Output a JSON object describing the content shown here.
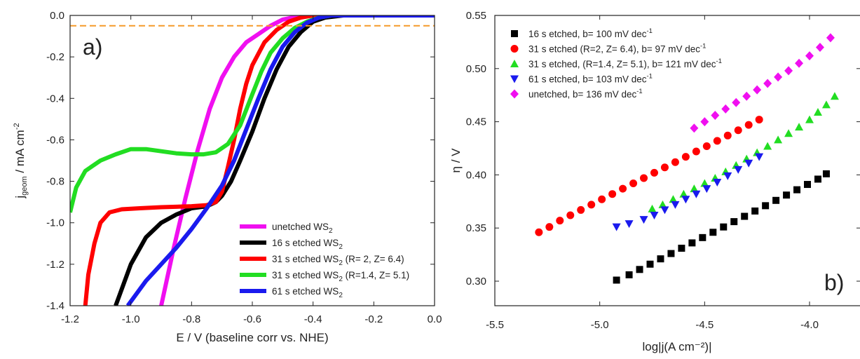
{
  "chart_data": [
    {
      "panel_label": "a)",
      "type": "line",
      "xlabel": "E / V (baseline corr vs. NHE)",
      "ylabel_main": "j",
      "ylabel_sub": "geom",
      "ylabel_rest": " / mA cm",
      "ylabel_sup": "-2",
      "xlim": [
        -1.2,
        0.0
      ],
      "ylim": [
        -1.4,
        0.0
      ],
      "x_ticks": [
        "-1.2",
        "-1.0",
        "-0.8",
        "-0.6",
        "-0.4",
        "-0.2",
        "0.0"
      ],
      "y_ticks": [
        "0.0",
        "-0.2",
        "-0.4",
        "-0.6",
        "-0.8",
        "-1.0",
        "-1.2",
        "-1.4"
      ],
      "reference_line": {
        "y": -0.05,
        "color": "#f59a2a",
        "style": "dashed"
      },
      "legend_position": "bottom-right",
      "series": [
        {
          "name": "unetched WS",
          "sub": "2",
          "extra": "",
          "color": "#f00ff0",
          "points": [
            [
              -0.9,
              -1.4
            ],
            [
              -0.86,
              -1.13
            ],
            [
              -0.82,
              -0.88
            ],
            [
              -0.78,
              -0.65
            ],
            [
              -0.74,
              -0.45
            ],
            [
              -0.7,
              -0.3
            ],
            [
              -0.66,
              -0.2
            ],
            [
              -0.62,
              -0.13
            ],
            [
              -0.58,
              -0.09
            ],
            [
              -0.54,
              -0.05
            ],
            [
              -0.5,
              -0.02
            ],
            [
              -0.45,
              -0.005
            ],
            [
              -0.4,
              0.0
            ],
            [
              0.0,
              0.0
            ]
          ]
        },
        {
          "name": "16 s etched WS",
          "sub": "2",
          "extra": "",
          "color": "#000000",
          "points": [
            [
              -1.05,
              -1.4
            ],
            [
              -1.0,
              -1.2
            ],
            [
              -0.95,
              -1.07
            ],
            [
              -0.9,
              -1.0
            ],
            [
              -0.85,
              -0.96
            ],
            [
              -0.8,
              -0.93
            ],
            [
              -0.75,
              -0.92
            ],
            [
              -0.72,
              -0.9
            ],
            [
              -0.7,
              -0.87
            ],
            [
              -0.67,
              -0.8
            ],
            [
              -0.64,
              -0.7
            ],
            [
              -0.6,
              -0.56
            ],
            [
              -0.56,
              -0.4
            ],
            [
              -0.52,
              -0.26
            ],
            [
              -0.48,
              -0.15
            ],
            [
              -0.44,
              -0.08
            ],
            [
              -0.4,
              -0.03
            ],
            [
              -0.36,
              -0.01
            ],
            [
              -0.3,
              0.0
            ],
            [
              0.0,
              0.0
            ]
          ]
        },
        {
          "name": "31 s etched WS",
          "sub": "2",
          "extra": " (R= 2, Z= 6.4)",
          "color": "#ff0000",
          "points": [
            [
              -1.15,
              -1.4
            ],
            [
              -1.14,
              -1.25
            ],
            [
              -1.12,
              -1.1
            ],
            [
              -1.1,
              -1.0
            ],
            [
              -1.07,
              -0.95
            ],
            [
              -1.03,
              -0.935
            ],
            [
              -0.97,
              -0.93
            ],
            [
              -0.9,
              -0.925
            ],
            [
              -0.8,
              -0.92
            ],
            [
              -0.75,
              -0.915
            ],
            [
              -0.72,
              -0.9
            ],
            [
              -0.7,
              -0.85
            ],
            [
              -0.68,
              -0.73
            ],
            [
              -0.66,
              -0.6
            ],
            [
              -0.64,
              -0.45
            ],
            [
              -0.62,
              -0.33
            ],
            [
              -0.6,
              -0.24
            ],
            [
              -0.56,
              -0.13
            ],
            [
              -0.52,
              -0.07
            ],
            [
              -0.48,
              -0.03
            ],
            [
              -0.44,
              -0.01
            ],
            [
              -0.4,
              0.0
            ],
            [
              0.0,
              0.0
            ]
          ]
        },
        {
          "name": "31 s etched WS",
          "sub": "2",
          "extra": " (R=1.4, Z= 5.1)",
          "color": "#22dd22",
          "points": [
            [
              -1.2,
              -0.95
            ],
            [
              -1.18,
              -0.83
            ],
            [
              -1.15,
              -0.75
            ],
            [
              -1.1,
              -0.7
            ],
            [
              -1.05,
              -0.67
            ],
            [
              -1.0,
              -0.645
            ],
            [
              -0.95,
              -0.645
            ],
            [
              -0.9,
              -0.655
            ],
            [
              -0.85,
              -0.665
            ],
            [
              -0.8,
              -0.67
            ],
            [
              -0.76,
              -0.67
            ],
            [
              -0.72,
              -0.66
            ],
            [
              -0.68,
              -0.62
            ],
            [
              -0.64,
              -0.53
            ],
            [
              -0.6,
              -0.38
            ],
            [
              -0.57,
              -0.27
            ],
            [
              -0.54,
              -0.18
            ],
            [
              -0.5,
              -0.11
            ],
            [
              -0.46,
              -0.06
            ],
            [
              -0.42,
              -0.03
            ],
            [
              -0.38,
              -0.01
            ],
            [
              -0.34,
              0.0
            ],
            [
              0.0,
              0.0
            ]
          ]
        },
        {
          "name": "61 s etched WS",
          "sub": "2",
          "extra": "",
          "color": "#1a1aee",
          "points": [
            [
              -1.01,
              -1.4
            ],
            [
              -0.95,
              -1.28
            ],
            [
              -0.9,
              -1.2
            ],
            [
              -0.85,
              -1.12
            ],
            [
              -0.8,
              -1.03
            ],
            [
              -0.75,
              -0.93
            ],
            [
              -0.7,
              -0.82
            ],
            [
              -0.66,
              -0.7
            ],
            [
              -0.62,
              -0.55
            ],
            [
              -0.58,
              -0.4
            ],
            [
              -0.54,
              -0.26
            ],
            [
              -0.5,
              -0.15
            ],
            [
              -0.46,
              -0.08
            ],
            [
              -0.42,
              -0.035
            ],
            [
              -0.38,
              -0.01
            ],
            [
              -0.34,
              0.0
            ],
            [
              0.0,
              0.0
            ]
          ]
        }
      ]
    },
    {
      "panel_label": "b)",
      "type": "scatter",
      "xlabel": "log|j(A cm⁻²)|",
      "ylabel": "η / V",
      "xlim": [
        -5.5,
        -3.75
      ],
      "ylim": [
        0.28,
        0.55
      ],
      "x_ticks": [
        "-5.5",
        "-5.0",
        "-4.5",
        "-4.0"
      ],
      "x_tick_values": [
        -5.5,
        -5.0,
        -4.5,
        -4.0
      ],
      "y_ticks": [
        "0.30",
        "0.35",
        "0.40",
        "0.45",
        "0.50",
        "0.55"
      ],
      "y_tick_values": [
        0.3,
        0.35,
        0.4,
        0.45,
        0.5,
        0.55
      ],
      "legend_position": "top-left",
      "series": [
        {
          "label": "16 s etched, b= 100 mV dec",
          "sup": "-1",
          "marker": "square",
          "color": "#000000",
          "x": [
            -4.92,
            -4.86,
            -4.81,
            -4.76,
            -4.71,
            -4.66,
            -4.61,
            -4.56,
            -4.51,
            -4.46,
            -4.41,
            -4.36,
            -4.31,
            -4.26,
            -4.21,
            -4.16,
            -4.11,
            -4.06,
            -4.01,
            -3.96,
            -3.92
          ],
          "y": [
            0.301,
            0.306,
            0.311,
            0.316,
            0.321,
            0.326,
            0.331,
            0.336,
            0.341,
            0.346,
            0.351,
            0.356,
            0.361,
            0.366,
            0.371,
            0.376,
            0.381,
            0.386,
            0.391,
            0.396,
            0.401
          ]
        },
        {
          "label": "31 s etched (R=2, Z= 6.4), b= 97 mV dec",
          "sup": "-1",
          "marker": "circle",
          "color": "#ff0000",
          "x": [
            -5.29,
            -5.24,
            -5.19,
            -5.14,
            -5.09,
            -5.04,
            -4.99,
            -4.94,
            -4.89,
            -4.84,
            -4.79,
            -4.74,
            -4.69,
            -4.64,
            -4.59,
            -4.54,
            -4.49,
            -4.44,
            -4.39,
            -4.34,
            -4.29,
            -4.24
          ],
          "y": [
            0.346,
            0.351,
            0.357,
            0.362,
            0.367,
            0.372,
            0.377,
            0.382,
            0.387,
            0.392,
            0.397,
            0.402,
            0.407,
            0.412,
            0.417,
            0.422,
            0.427,
            0.432,
            0.437,
            0.442,
            0.447,
            0.452
          ]
        },
        {
          "label": "31 s etched, (R=1.4, Z= 5.1), b= 121 mV dec",
          "sup": "-1",
          "marker": "triangle-up",
          "color": "#22dd22",
          "x": [
            -4.75,
            -4.7,
            -4.65,
            -4.6,
            -4.55,
            -4.5,
            -4.45,
            -4.4,
            -4.35,
            -4.3,
            -4.25,
            -4.2,
            -4.15,
            -4.1,
            -4.05,
            -4.0,
            -3.96,
            -3.92,
            -3.88
          ],
          "y": [
            0.368,
            0.372,
            0.377,
            0.382,
            0.387,
            0.392,
            0.397,
            0.403,
            0.409,
            0.415,
            0.421,
            0.427,
            0.433,
            0.439,
            0.445,
            0.452,
            0.459,
            0.466,
            0.474
          ]
        },
        {
          "label": "61 s etched, b= 103 mV dec",
          "sup": "-1",
          "marker": "triangle-down",
          "color": "#1a1aee",
          "x": [
            -4.92,
            -4.86,
            -4.79,
            -4.74,
            -4.69,
            -4.64,
            -4.59,
            -4.54,
            -4.49,
            -4.44,
            -4.39,
            -4.34,
            -4.29,
            -4.24
          ],
          "y": [
            0.351,
            0.354,
            0.358,
            0.362,
            0.367,
            0.372,
            0.377,
            0.382,
            0.387,
            0.393,
            0.399,
            0.405,
            0.411,
            0.417
          ]
        },
        {
          "label": "unetched, b= 136 mV dec",
          "sup": "-1",
          "marker": "diamond",
          "color": "#f00ff0",
          "x": [
            -4.55,
            -4.5,
            -4.45,
            -4.4,
            -4.35,
            -4.3,
            -4.25,
            -4.2,
            -4.15,
            -4.1,
            -4.05,
            -4.0,
            -3.95,
            -3.9
          ],
          "y": [
            0.444,
            0.45,
            0.456,
            0.462,
            0.468,
            0.474,
            0.48,
            0.486,
            0.492,
            0.498,
            0.505,
            0.512,
            0.52,
            0.529
          ]
        }
      ]
    }
  ]
}
